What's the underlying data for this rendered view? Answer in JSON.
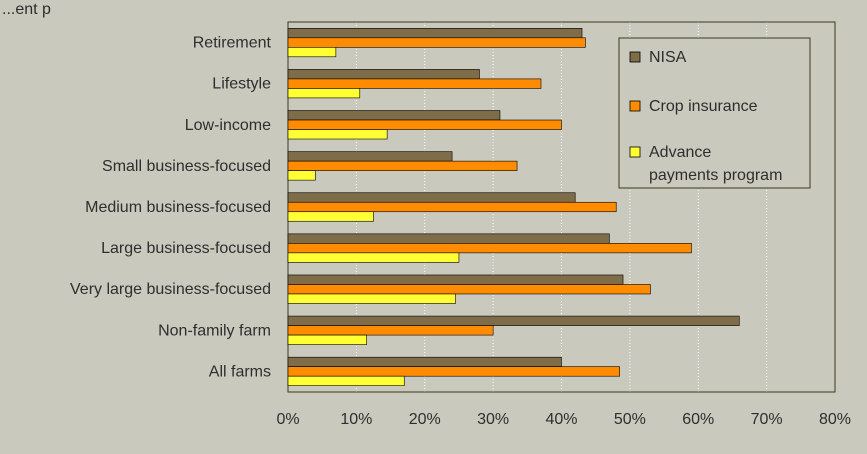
{
  "corner_text": "...ent p",
  "colors": {
    "background": "#c9c9be",
    "plot_area": "#c9c9be",
    "border": "#3a3a1a",
    "grid": "#ffffff"
  },
  "chart_data": {
    "type": "bar",
    "orientation": "horizontal",
    "categories": [
      "Retirement",
      "Lifestyle",
      "Low-income",
      "Small business-focused",
      "Medium business-focused",
      "Large business-focused",
      "Very large business-focused",
      "Non-family farm",
      "All farms"
    ],
    "series": [
      {
        "name": "NISA",
        "color": "#7f6d4a",
        "values": [
          43,
          28,
          31,
          24,
          42,
          47,
          49,
          66,
          40
        ]
      },
      {
        "name": "Crop insurance",
        "color": "#ff8c00",
        "values": [
          43.5,
          37,
          40,
          33.5,
          48,
          59,
          53,
          30,
          48.5
        ]
      },
      {
        "name": "Advance payments program",
        "color": "#ffff33",
        "values": [
          7,
          10.5,
          14.5,
          4,
          12.5,
          25,
          24.5,
          11.5,
          17
        ]
      }
    ],
    "legend": [
      "NISA",
      "Crop insurance",
      "Advance payments program"
    ],
    "legend_position": "top-right",
    "xlim": [
      0,
      80
    ],
    "x_ticks": [
      "0%",
      "10%",
      "20%",
      "30%",
      "40%",
      "50%",
      "60%",
      "70%",
      "80%"
    ],
    "grid": "vertical-dashed"
  }
}
